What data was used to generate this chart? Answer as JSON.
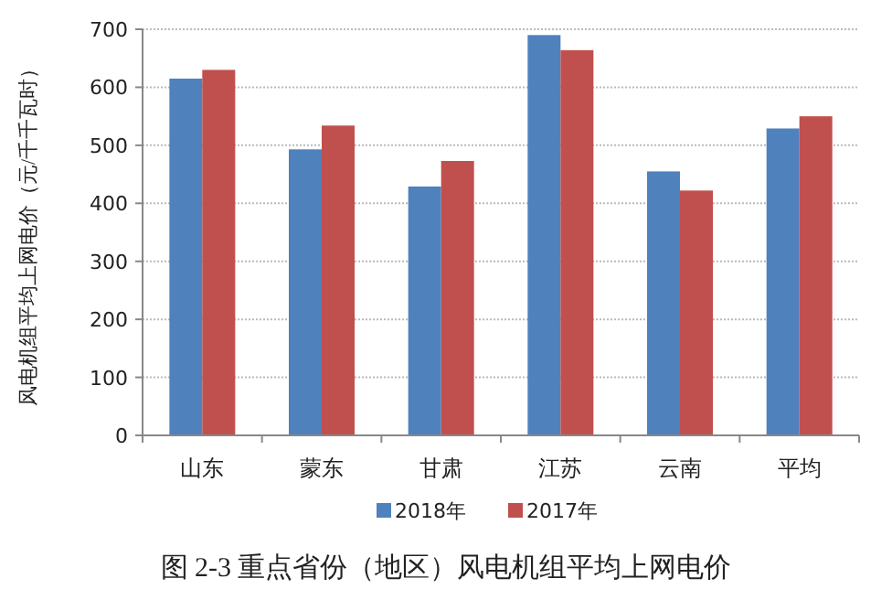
{
  "chart_data": {
    "type": "bar",
    "title": "图 2-3 重点省份（地区）风电机组平均上网电价",
    "ylabel": "风电机组平均上网电价（元/千千瓦时）",
    "categories": [
      "山东",
      "蒙东",
      "甘肃",
      "江苏",
      "云南",
      "平均"
    ],
    "series": [
      {
        "name": "2018年",
        "color": "#4f81bd",
        "values": [
          615,
          493,
          429,
          690,
          455,
          529
        ]
      },
      {
        "name": "2017年",
        "color": "#c0504d",
        "values": [
          630,
          534,
          473,
          664,
          422,
          550
        ]
      }
    ],
    "ylim": [
      0,
      700
    ],
    "yticks": [
      0,
      100,
      200,
      300,
      400,
      500,
      600,
      700
    ],
    "grid": "y",
    "legend": "bottom"
  }
}
